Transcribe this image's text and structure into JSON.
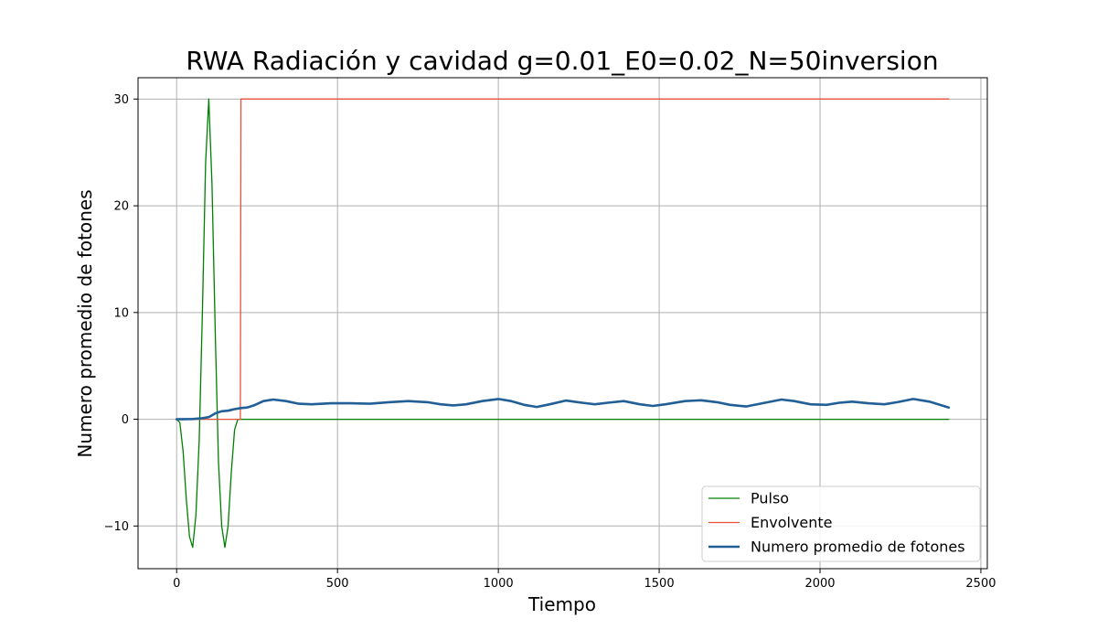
{
  "chart_data": {
    "type": "line",
    "title": "RWA Radiación y cavidad g=0.01_E0=0.02_N=50inversion",
    "xlabel": "Tiempo",
    "ylabel": "Numero promedio de fotones",
    "xlim": [
      -120,
      2520
    ],
    "ylim": [
      -14,
      32
    ],
    "xticks": [
      0,
      500,
      1000,
      1500,
      2000,
      2500
    ],
    "xtick_labels": [
      "0",
      "500",
      "1000",
      "1500",
      "2000",
      "2500"
    ],
    "yticks": [
      -10,
      0,
      10,
      20,
      30
    ],
    "ytick_labels": [
      "−10",
      "0",
      "10",
      "20",
      "30"
    ],
    "grid": true,
    "legend_position": "bottom-right",
    "series": [
      {
        "name": "Pulso",
        "color": "#008000",
        "line_width": "thin",
        "x": [
          0,
          10,
          20,
          30,
          40,
          50,
          60,
          70,
          80,
          90,
          100,
          110,
          120,
          130,
          140,
          150,
          160,
          170,
          180,
          190,
          200,
          2400
        ],
        "y": [
          0,
          -0.3,
          -3,
          -7.5,
          -11,
          -12,
          -9,
          -2,
          10,
          24,
          30,
          22,
          8,
          -4,
          -10,
          -12,
          -10,
          -5,
          -1,
          0,
          0,
          0
        ]
      },
      {
        "name": "Envolvente",
        "color": "#e8503c",
        "line_width": "thin",
        "x": [
          0,
          198,
          200,
          2400
        ],
        "y": [
          0,
          0,
          30,
          30
        ]
      },
      {
        "name": "Numero promedio de fotones",
        "color": "#215f96",
        "line_width": "thick",
        "x": [
          0,
          50,
          80,
          100,
          120,
          140,
          160,
          180,
          200,
          220,
          240,
          270,
          300,
          340,
          380,
          420,
          480,
          540,
          600,
          660,
          720,
          780,
          820,
          860,
          900,
          950,
          1000,
          1040,
          1080,
          1120,
          1160,
          1210,
          1260,
          1300,
          1340,
          1390,
          1440,
          1480,
          1520,
          1580,
          1630,
          1680,
          1720,
          1770,
          1820,
          1880,
          1920,
          1970,
          2020,
          2060,
          2100,
          2150,
          2200,
          2240,
          2290,
          2340,
          2400
        ],
        "y": [
          0,
          0.02,
          0.1,
          0.2,
          0.55,
          0.75,
          0.8,
          0.95,
          1.05,
          1.1,
          1.3,
          1.7,
          1.85,
          1.7,
          1.45,
          1.4,
          1.5,
          1.5,
          1.45,
          1.6,
          1.7,
          1.6,
          1.4,
          1.3,
          1.4,
          1.7,
          1.9,
          1.7,
          1.35,
          1.15,
          1.4,
          1.75,
          1.55,
          1.4,
          1.55,
          1.7,
          1.4,
          1.25,
          1.4,
          1.7,
          1.78,
          1.6,
          1.35,
          1.2,
          1.5,
          1.85,
          1.7,
          1.4,
          1.35,
          1.55,
          1.65,
          1.5,
          1.4,
          1.6,
          1.9,
          1.65,
          1.1
        ]
      }
    ]
  }
}
